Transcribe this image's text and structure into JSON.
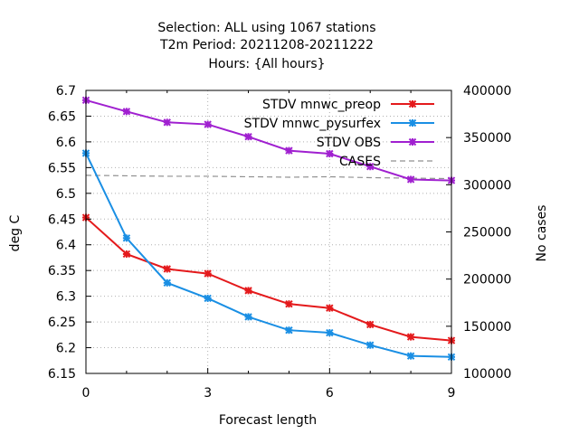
{
  "chart_data": {
    "type": "line",
    "title_lines": [
      "Selection: ALL using  1067 stations",
      "T2m   Period: 20211208-20211222",
      "Hours: {All hours}"
    ],
    "xlabel": "Forecast length",
    "ylabel": "deg C",
    "y2label": "No cases",
    "x": [
      0,
      1,
      2,
      3,
      4,
      5,
      6,
      7,
      8,
      9
    ],
    "xlim": [
      0,
      9
    ],
    "xticks": [
      0,
      3,
      6,
      9
    ],
    "ylim": [
      6.15,
      6.7
    ],
    "yticks": [
      "6.15",
      "6.2",
      "6.25",
      "6.3",
      "6.35",
      "6.4",
      "6.45",
      "6.5",
      "6.55",
      "6.6",
      "6.65",
      "6.7"
    ],
    "y2lim": [
      100000,
      400000
    ],
    "y2ticks": [
      "100000",
      "150000",
      "200000",
      "250000",
      "300000",
      "350000",
      "400000"
    ],
    "grid": true,
    "legend_position": "top-right",
    "series": [
      {
        "name": "STDV mnwc_preop",
        "color": "#e41a1c",
        "axis": "y",
        "style": "line-marker",
        "values": [
          6.453,
          6.382,
          6.353,
          6.344,
          6.311,
          6.285,
          6.277,
          6.245,
          6.221,
          6.214
        ]
      },
      {
        "name": "STDV mnwc_pysurfex",
        "color": "#1a8fe4",
        "axis": "y",
        "style": "line-marker",
        "values": [
          6.578,
          6.413,
          6.326,
          6.296,
          6.26,
          6.234,
          6.229,
          6.205,
          6.184,
          6.182
        ]
      },
      {
        "name": "STDV OBS",
        "color": "#a020d0",
        "axis": "y",
        "style": "line-marker",
        "values": [
          6.681,
          6.659,
          6.638,
          6.634,
          6.61,
          6.583,
          6.577,
          6.552,
          6.527,
          6.525
        ]
      },
      {
        "name": "CASES",
        "color": "#909090",
        "axis": "y2",
        "style": "dashed",
        "values": [
          310000,
          309500,
          309000,
          309000,
          308500,
          308000,
          308500,
          307500,
          307000,
          306500
        ]
      }
    ]
  }
}
